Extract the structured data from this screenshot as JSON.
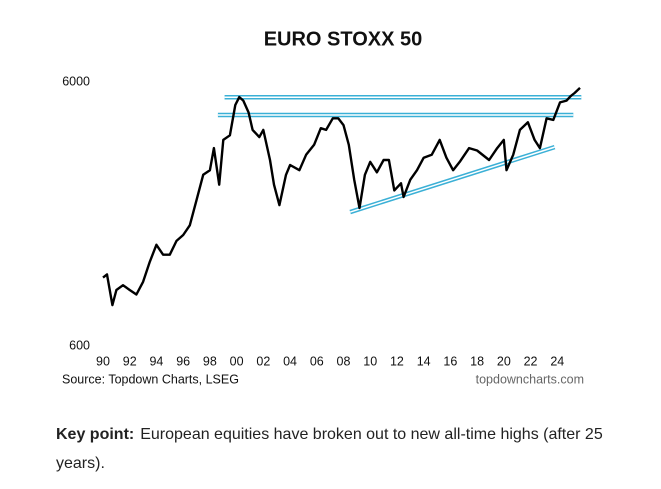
{
  "chart_data": {
    "type": "line",
    "title": "EURO STOXX 50",
    "source": "Source: Topdown Charts, LSEG",
    "watermark": "topdowncharts.com",
    "log_scale": true,
    "grid": false,
    "xlim": [
      1990,
      2026
    ],
    "ylim": [
      600,
      6000
    ],
    "yticks": [
      600,
      6000
    ],
    "xticks": [
      {
        "value": 1990,
        "label": "90"
      },
      {
        "value": 1992,
        "label": "92"
      },
      {
        "value": 1994,
        "label": "94"
      },
      {
        "value": 1996,
        "label": "96"
      },
      {
        "value": 1998,
        "label": "98"
      },
      {
        "value": 2000,
        "label": "00"
      },
      {
        "value": 2002,
        "label": "02"
      },
      {
        "value": 2004,
        "label": "04"
      },
      {
        "value": 2006,
        "label": "06"
      },
      {
        "value": 2008,
        "label": "08"
      },
      {
        "value": 2010,
        "label": "10"
      },
      {
        "value": 2012,
        "label": "12"
      },
      {
        "value": 2014,
        "label": "14"
      },
      {
        "value": 2016,
        "label": "16"
      },
      {
        "value": 2018,
        "label": "18"
      },
      {
        "value": 2020,
        "label": "20"
      },
      {
        "value": 2022,
        "label": "22"
      },
      {
        "value": 2024,
        "label": "24"
      }
    ],
    "series": [
      {
        "color": "#000000",
        "x": [
          1990,
          1990.3,
          1990.7,
          1991,
          1991.5,
          1992,
          1992.5,
          1993,
          1993.5,
          1994,
          1994.5,
          1995,
          1995.5,
          1996,
          1996.5,
          1997,
          1997.5,
          1998,
          1998.3,
          1998.7,
          1999,
          1999.5,
          1999.9,
          2000.2,
          2000.5,
          2000.9,
          2001.2,
          2001.7,
          2002,
          2002.5,
          2002.8,
          2003.2,
          2003.7,
          2004,
          2004.7,
          2005.2,
          2005.8,
          2006.3,
          2006.7,
          2007.2,
          2007.6,
          2008,
          2008.4,
          2008.8,
          2009.2,
          2009.6,
          2010,
          2010.5,
          2011,
          2011.4,
          2011.8,
          2012.3,
          2012.5,
          2013,
          2013.5,
          2014,
          2014.6,
          2015.2,
          2015.7,
          2016.2,
          2016.7,
          2017.4,
          2018,
          2018.9,
          2019.5,
          2020,
          2020.2,
          2020.7,
          2021.2,
          2021.8,
          2022.3,
          2022.7,
          2023.2,
          2023.7,
          2024.2,
          2024.7,
          2025,
          2025.3,
          2025.7
        ],
        "values": [
          1090,
          1120,
          857,
          978,
          1020,
          978,
          940,
          1050,
          1250,
          1450,
          1330,
          1330,
          1500,
          1580,
          1720,
          2140,
          2670,
          2780,
          3370,
          2450,
          3620,
          3770,
          4910,
          5260,
          5100,
          4600,
          3950,
          3710,
          3950,
          3040,
          2450,
          2050,
          2670,
          2910,
          2780,
          3180,
          3470,
          4010,
          3950,
          4370,
          4370,
          4120,
          3470,
          2560,
          2000,
          2670,
          2990,
          2730,
          3040,
          3040,
          2330,
          2480,
          2200,
          2560,
          2780,
          3100,
          3180,
          3620,
          3100,
          2780,
          2990,
          3370,
          3300,
          3040,
          3370,
          3620,
          2780,
          3180,
          3950,
          4220,
          3620,
          3370,
          4370,
          4310,
          5020,
          5100,
          5300,
          5450,
          5700
        ]
      }
    ],
    "trendlines": [
      {
        "color": "#3bb0d6",
        "x": [
          1999.1,
          2025.8
        ],
        "values": [
          5250,
          5250
        ]
      },
      {
        "color": "#3bb0d6",
        "x": [
          1998.6,
          2025.2
        ],
        "values": [
          4500,
          4500
        ]
      },
      {
        "color": "#3bb0d6",
        "x": [
          2008.5,
          2023.8
        ],
        "values": [
          1930,
          3400
        ]
      }
    ]
  },
  "caption": {
    "label": "Key point:",
    "text": "European equities have broken out to new all-time highs (after 25 years)."
  }
}
